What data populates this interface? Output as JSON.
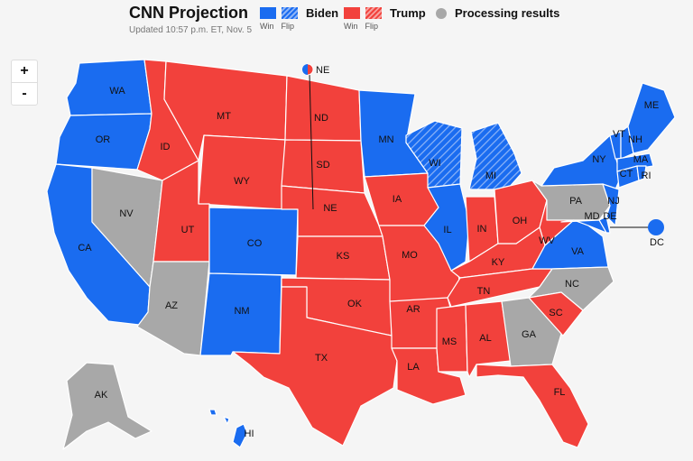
{
  "header": {
    "title": "CNN Projection",
    "updated": "Updated 10:57 p.m. ET, Nov. 5"
  },
  "legend": {
    "biden": {
      "name": "Biden",
      "win": "Win",
      "flip": "Flip",
      "color": "#1a6cf0"
    },
    "trump": {
      "name": "Trump",
      "win": "Win",
      "flip": "Flip",
      "color": "#f2413c"
    },
    "processing": {
      "name": "Processing results",
      "color": "#a8a8a8"
    }
  },
  "zoom": {
    "in": "+",
    "out": "-"
  },
  "states": {
    "WA": "biden",
    "OR": "biden",
    "CA": "biden",
    "NV": "processing",
    "ID": "trump",
    "MT": "trump",
    "WY": "trump",
    "UT": "trump",
    "AZ": "processing",
    "CO": "biden",
    "NM": "biden",
    "ND": "trump",
    "SD": "trump",
    "NE": "trump",
    "KS": "trump",
    "OK": "trump",
    "TX": "trump",
    "MN": "biden",
    "IA": "trump",
    "MO": "trump",
    "AR": "trump",
    "LA": "trump",
    "WI": "biden-flip",
    "IL": "biden",
    "MS": "trump",
    "MI": "biden-flip",
    "IN": "trump",
    "KY": "trump",
    "TN": "trump",
    "AL": "trump",
    "OH": "trump",
    "WV": "trump",
    "VA": "biden",
    "NC": "processing",
    "SC": "trump",
    "GA": "processing",
    "FL": "trump",
    "PA": "processing",
    "NY": "biden",
    "VT": "biden",
    "NH": "biden",
    "ME": "biden",
    "MA": "biden",
    "CT": "biden",
    "RI": "biden",
    "NJ": "biden",
    "DE": "biden",
    "MD": "biden",
    "DC": "biden",
    "AK": "processing",
    "HI": "biden"
  },
  "callouts": {
    "ne_label": "NE",
    "dc_label": "DC"
  }
}
